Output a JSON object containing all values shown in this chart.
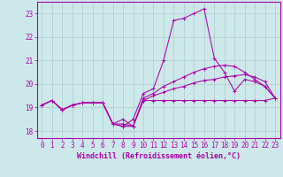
{
  "bg_color": "#cde8ea",
  "line_color": "#aa00aa",
  "grid_color": "#aacccc",
  "xlabel": "Windchill (Refroidissement éolien,°C)",
  "xlabel_fontsize": 6.0,
  "tick_fontsize": 5.5,
  "ylabel_ticks": [
    18,
    19,
    20,
    21,
    22,
    23
  ],
  "xlabel_ticks": [
    0,
    1,
    2,
    3,
    4,
    5,
    6,
    7,
    8,
    9,
    10,
    11,
    12,
    13,
    14,
    15,
    16,
    17,
    18,
    19,
    20,
    21,
    22,
    23
  ],
  "xlim": [
    -0.5,
    23.5
  ],
  "ylim": [
    17.7,
    23.5
  ],
  "line1_x": [
    0,
    1,
    2,
    3,
    4,
    5,
    6,
    7,
    8,
    9,
    10,
    11,
    12,
    13,
    14,
    15,
    16,
    17,
    18,
    19,
    20,
    21,
    22,
    23
  ],
  "line1_y": [
    19.1,
    19.3,
    18.9,
    19.1,
    19.2,
    19.2,
    19.2,
    18.3,
    18.2,
    18.2,
    19.3,
    19.3,
    19.3,
    19.3,
    19.3,
    19.3,
    19.3,
    19.3,
    19.3,
    19.3,
    19.3,
    19.3,
    19.3,
    19.4
  ],
  "line2_x": [
    0,
    1,
    2,
    3,
    4,
    5,
    6,
    7,
    8,
    9,
    10,
    11,
    12,
    13,
    14,
    15,
    16,
    17,
    18,
    19,
    20,
    21,
    22,
    23
  ],
  "line2_y": [
    19.1,
    19.3,
    18.9,
    19.1,
    19.2,
    19.2,
    19.2,
    18.3,
    18.2,
    18.5,
    19.6,
    19.8,
    21.0,
    22.7,
    22.8,
    23.0,
    23.2,
    21.1,
    20.5,
    19.7,
    20.2,
    20.1,
    19.9,
    19.4
  ],
  "line3_x": [
    0,
    1,
    2,
    3,
    4,
    5,
    6,
    7,
    8,
    9,
    10,
    11,
    12,
    13,
    14,
    15,
    16,
    17,
    18,
    19,
    20,
    21,
    22,
    23
  ],
  "line3_y": [
    19.1,
    19.3,
    18.9,
    19.1,
    19.2,
    19.2,
    19.2,
    18.3,
    18.3,
    18.2,
    19.3,
    19.5,
    19.65,
    19.8,
    19.9,
    20.05,
    20.15,
    20.2,
    20.3,
    20.35,
    20.4,
    20.3,
    20.1,
    19.4
  ],
  "line4_x": [
    0,
    1,
    2,
    3,
    4,
    5,
    6,
    7,
    8,
    9,
    10,
    11,
    12,
    13,
    14,
    15,
    16,
    17,
    18,
    19,
    20,
    21,
    22,
    23
  ],
  "line4_y": [
    19.1,
    19.3,
    18.9,
    19.1,
    19.2,
    19.2,
    19.2,
    18.3,
    18.5,
    18.2,
    19.4,
    19.6,
    19.9,
    20.1,
    20.3,
    20.5,
    20.65,
    20.75,
    20.8,
    20.75,
    20.5,
    20.2,
    19.9,
    19.4
  ]
}
